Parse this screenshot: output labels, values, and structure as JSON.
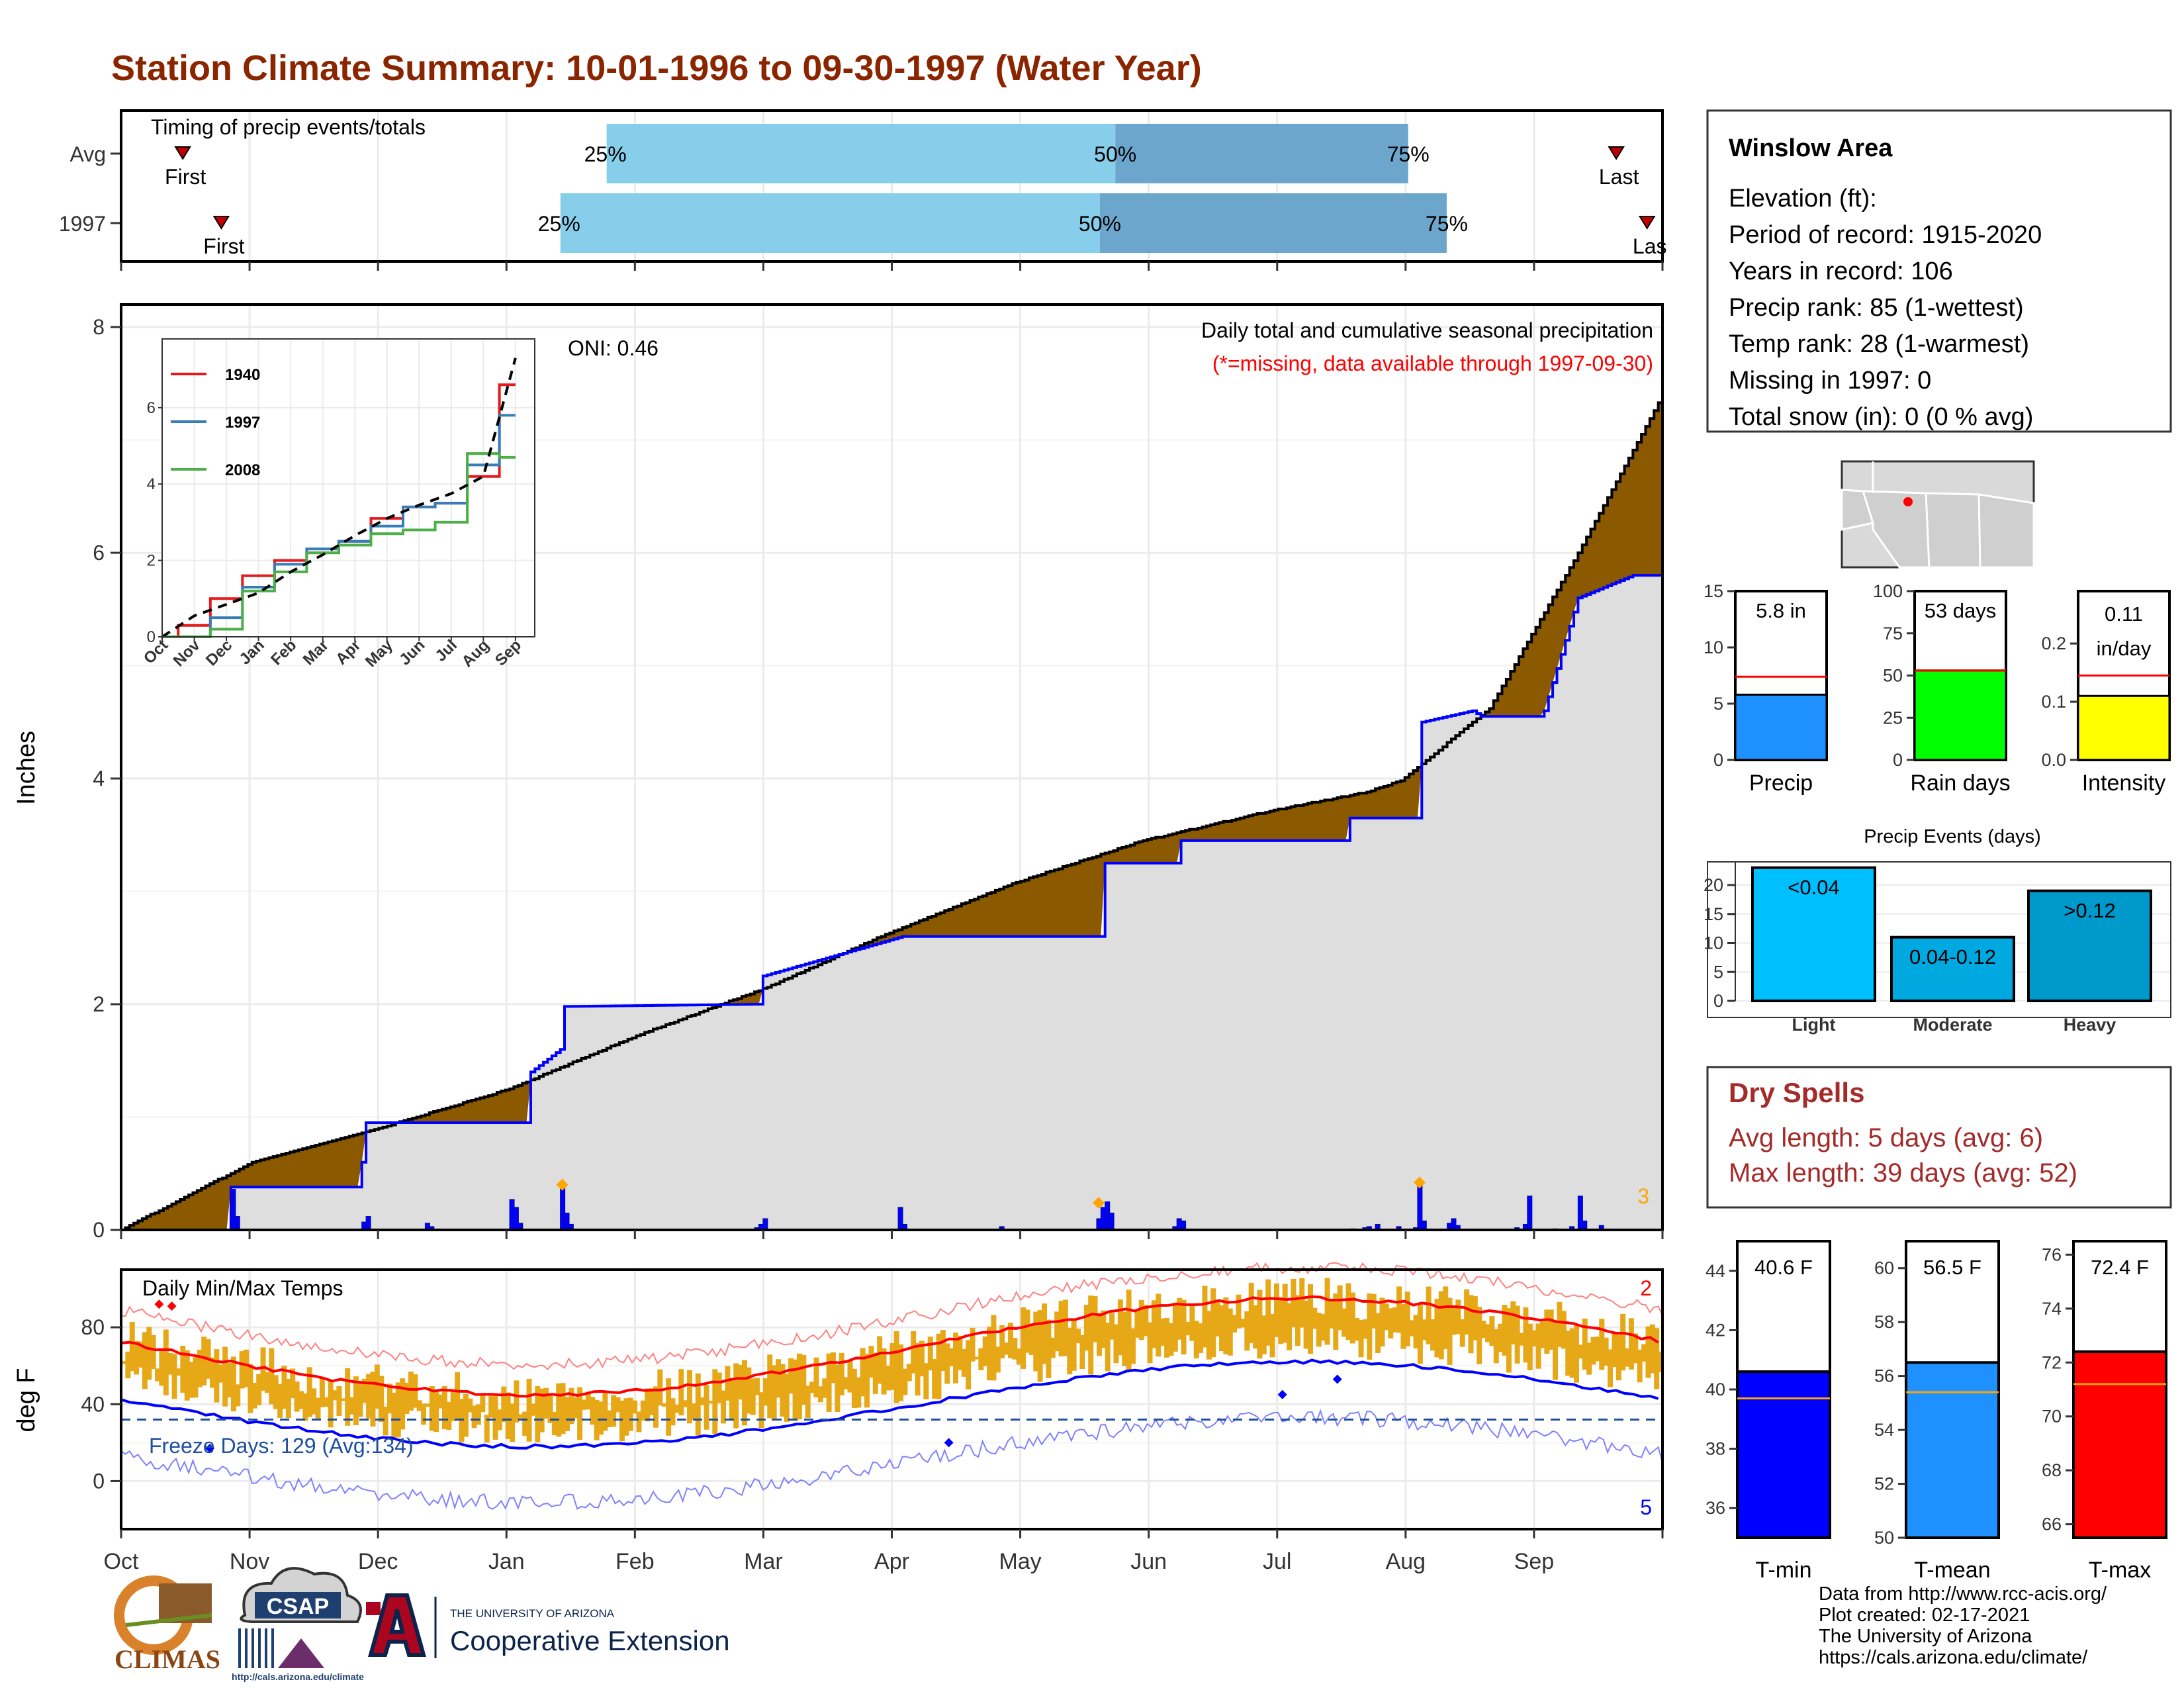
{
  "title": "Station Climate Summary: 10-01-1996 to 09-30-1997 (Water Year)",
  "months": [
    "Oct",
    "Nov",
    "Dec",
    "Jan",
    "Feb",
    "Mar",
    "Apr",
    "May",
    "Jun",
    "Jul",
    "Aug",
    "Sep"
  ],
  "timing": {
    "label": "Timing of precip events/totals",
    "rows": [
      {
        "name": "Avg",
        "first": 0.04,
        "p25": 0.315,
        "p50": 0.645,
        "p75": 0.835,
        "last": 0.97
      },
      {
        "name": "1997",
        "first": 0.065,
        "p25": 0.285,
        "p50": 0.635,
        "p75": 0.86,
        "last": 0.99
      }
    ],
    "first_label": "First",
    "last_label": "Last",
    "last_label_clipped": "Las",
    "p25_label": "25%",
    "p50_label": "50%",
    "p75_label": "75%"
  },
  "station": {
    "name": "Winslow Area",
    "lines": [
      "Elevation (ft):",
      "Period of record: 1915-2020",
      "Years in record: 106",
      "Precip rank: 85 (1-wettest)",
      "Temp rank: 28 (1-warmest)",
      "Missing in 1997: 0",
      "Total snow (in): 0 (0 % avg)"
    ]
  },
  "precip_panel": {
    "ylabel": "Inches",
    "oni": "ONI: 0.46",
    "note1": "Daily total and cumulative seasonal precipitation",
    "note2": "(*=missing, data available through 1997-09-30)",
    "count_label": "3"
  },
  "temp_panel": {
    "ylabel": "deg F",
    "label": "Daily Min/Max Temps",
    "freeze": "Freeze Days: 129 (Avg:134)",
    "top_count": "2",
    "bottom_count": "5"
  },
  "mini_bars": [
    {
      "name": "Precip",
      "value": 5.8,
      "avg": 7.4,
      "ymax": 15,
      "ticks": [
        0,
        5,
        10,
        15
      ],
      "label": "5.8 in",
      "color": "#1e90ff"
    },
    {
      "name": "Rain days",
      "value": 53,
      "avg": 53,
      "ymax": 100,
      "ticks": [
        0,
        25,
        50,
        75,
        100
      ],
      "label": "53 days",
      "color": "#00ff00"
    },
    {
      "name": "Intensity",
      "value": 0.11,
      "avg": 0.145,
      "ymax": 0.29,
      "ticks": [
        0.0,
        0.1,
        0.2
      ],
      "label_lines": [
        "0.11",
        "in/day"
      ],
      "color": "#ffff00"
    }
  ],
  "events": {
    "title": "Precip Events (days)",
    "categories": [
      "Light",
      "Moderate",
      "Heavy"
    ],
    "values": [
      23,
      11,
      19
    ],
    "labels": [
      "<0.04",
      "0.04-0.12",
      ">0.12"
    ],
    "colors": [
      "#00bfff",
      "#00a8e0",
      "#0099cc"
    ],
    "ticks": [
      0,
      5,
      10,
      15,
      20
    ]
  },
  "dry_spells": {
    "title": "Dry Spells",
    "avg": "Avg length: 5 days (avg: 6)",
    "max": "Max length: 39 days (avg: 52)"
  },
  "temp_bars": [
    {
      "name": "T-min",
      "value": 40.6,
      "avg": 39.7,
      "ylim": [
        35,
        45
      ],
      "ticks": [
        36,
        38,
        40,
        42,
        44
      ],
      "label": "40.6 F",
      "color": "#0000ff"
    },
    {
      "name": "T-mean",
      "value": 56.5,
      "avg": 55.4,
      "ylim": [
        50,
        61
      ],
      "ticks": [
        50,
        52,
        54,
        56,
        58,
        60
      ],
      "label": "56.5 F",
      "color": "#1e90ff"
    },
    {
      "name": "T-max",
      "value": 72.4,
      "avg": 71.2,
      "ylim": [
        65.5,
        76.5
      ],
      "ticks": [
        66,
        68,
        70,
        72,
        74,
        76
      ],
      "label": "72.4 F",
      "color": "#ff0000"
    }
  ],
  "footer": [
    "Data from http://www.rcc-acis.org/",
    "Plot created: 02-17-2021",
    "The University of Arizona",
    "https://cals.arizona.edu/climate/"
  ],
  "logos": {
    "climas": "CLIMAS",
    "csap": "CSAP",
    "csap_url": "http://cals.arizona.edu/climate",
    "ua_top": "THE UNIVERSITY OF ARIZONA",
    "ua_bottom": "Cooperative Extension",
    "ua_letter": "A"
  },
  "chart_data": {
    "type": "area",
    "title": "Daily total and cumulative seasonal precipitation",
    "ylabel": "Inches",
    "ylim": [
      0,
      8.2
    ],
    "x": [
      "Oct",
      "Nov",
      "Dec",
      "Jan",
      "Feb",
      "Mar",
      "Apr",
      "May",
      "Jun",
      "Jul",
      "Aug",
      "Sep"
    ],
    "series": [
      {
        "name": "avg_cumulative",
        "values": [
          0.55,
          0.85,
          1.15,
          1.7,
          2.15,
          2.65,
          3.1,
          3.45,
          3.75,
          4.0,
          5.6,
          7.4
        ]
      },
      {
        "name": "1997_cumulative",
        "values": [
          0.0,
          0.38,
          0.95,
          1.6,
          2.0,
          2.25,
          2.6,
          2.95,
          3.45,
          3.45,
          4.5,
          5.8
        ]
      }
    ],
    "inset": {
      "ticks_x": [
        "Oct",
        "Nov",
        "Dec",
        "Jan",
        "Feb",
        "Mar",
        "Apr",
        "May",
        "Jun",
        "Jul",
        "Aug",
        "Sep"
      ],
      "ticks_y": [
        0,
        2,
        4,
        6
      ],
      "series": [
        {
          "name": "1940",
          "color": "#e41a1c",
          "values": [
            0,
            0.3,
            1.0,
            1.6,
            2.0,
            2.2,
            2.5,
            3.1,
            3.4,
            3.5,
            4.2,
            6.6
          ]
        },
        {
          "name": "1997",
          "color": "#377eb8",
          "values": [
            0,
            0.0,
            0.5,
            1.3,
            1.9,
            2.3,
            2.5,
            2.9,
            3.4,
            3.5,
            4.5,
            5.8
          ]
        },
        {
          "name": "2008",
          "color": "#4daf4a",
          "values": [
            0,
            0.0,
            0.2,
            1.2,
            1.7,
            2.2,
            2.4,
            2.7,
            2.8,
            3.0,
            4.8,
            4.7
          ]
        },
        {
          "name": "avg",
          "color": "#000000",
          "values": [
            0,
            0.55,
            0.85,
            1.15,
            1.7,
            2.15,
            2.65,
            3.1,
            3.45,
            3.75,
            4.2,
            7.3
          ]
        }
      ]
    }
  }
}
